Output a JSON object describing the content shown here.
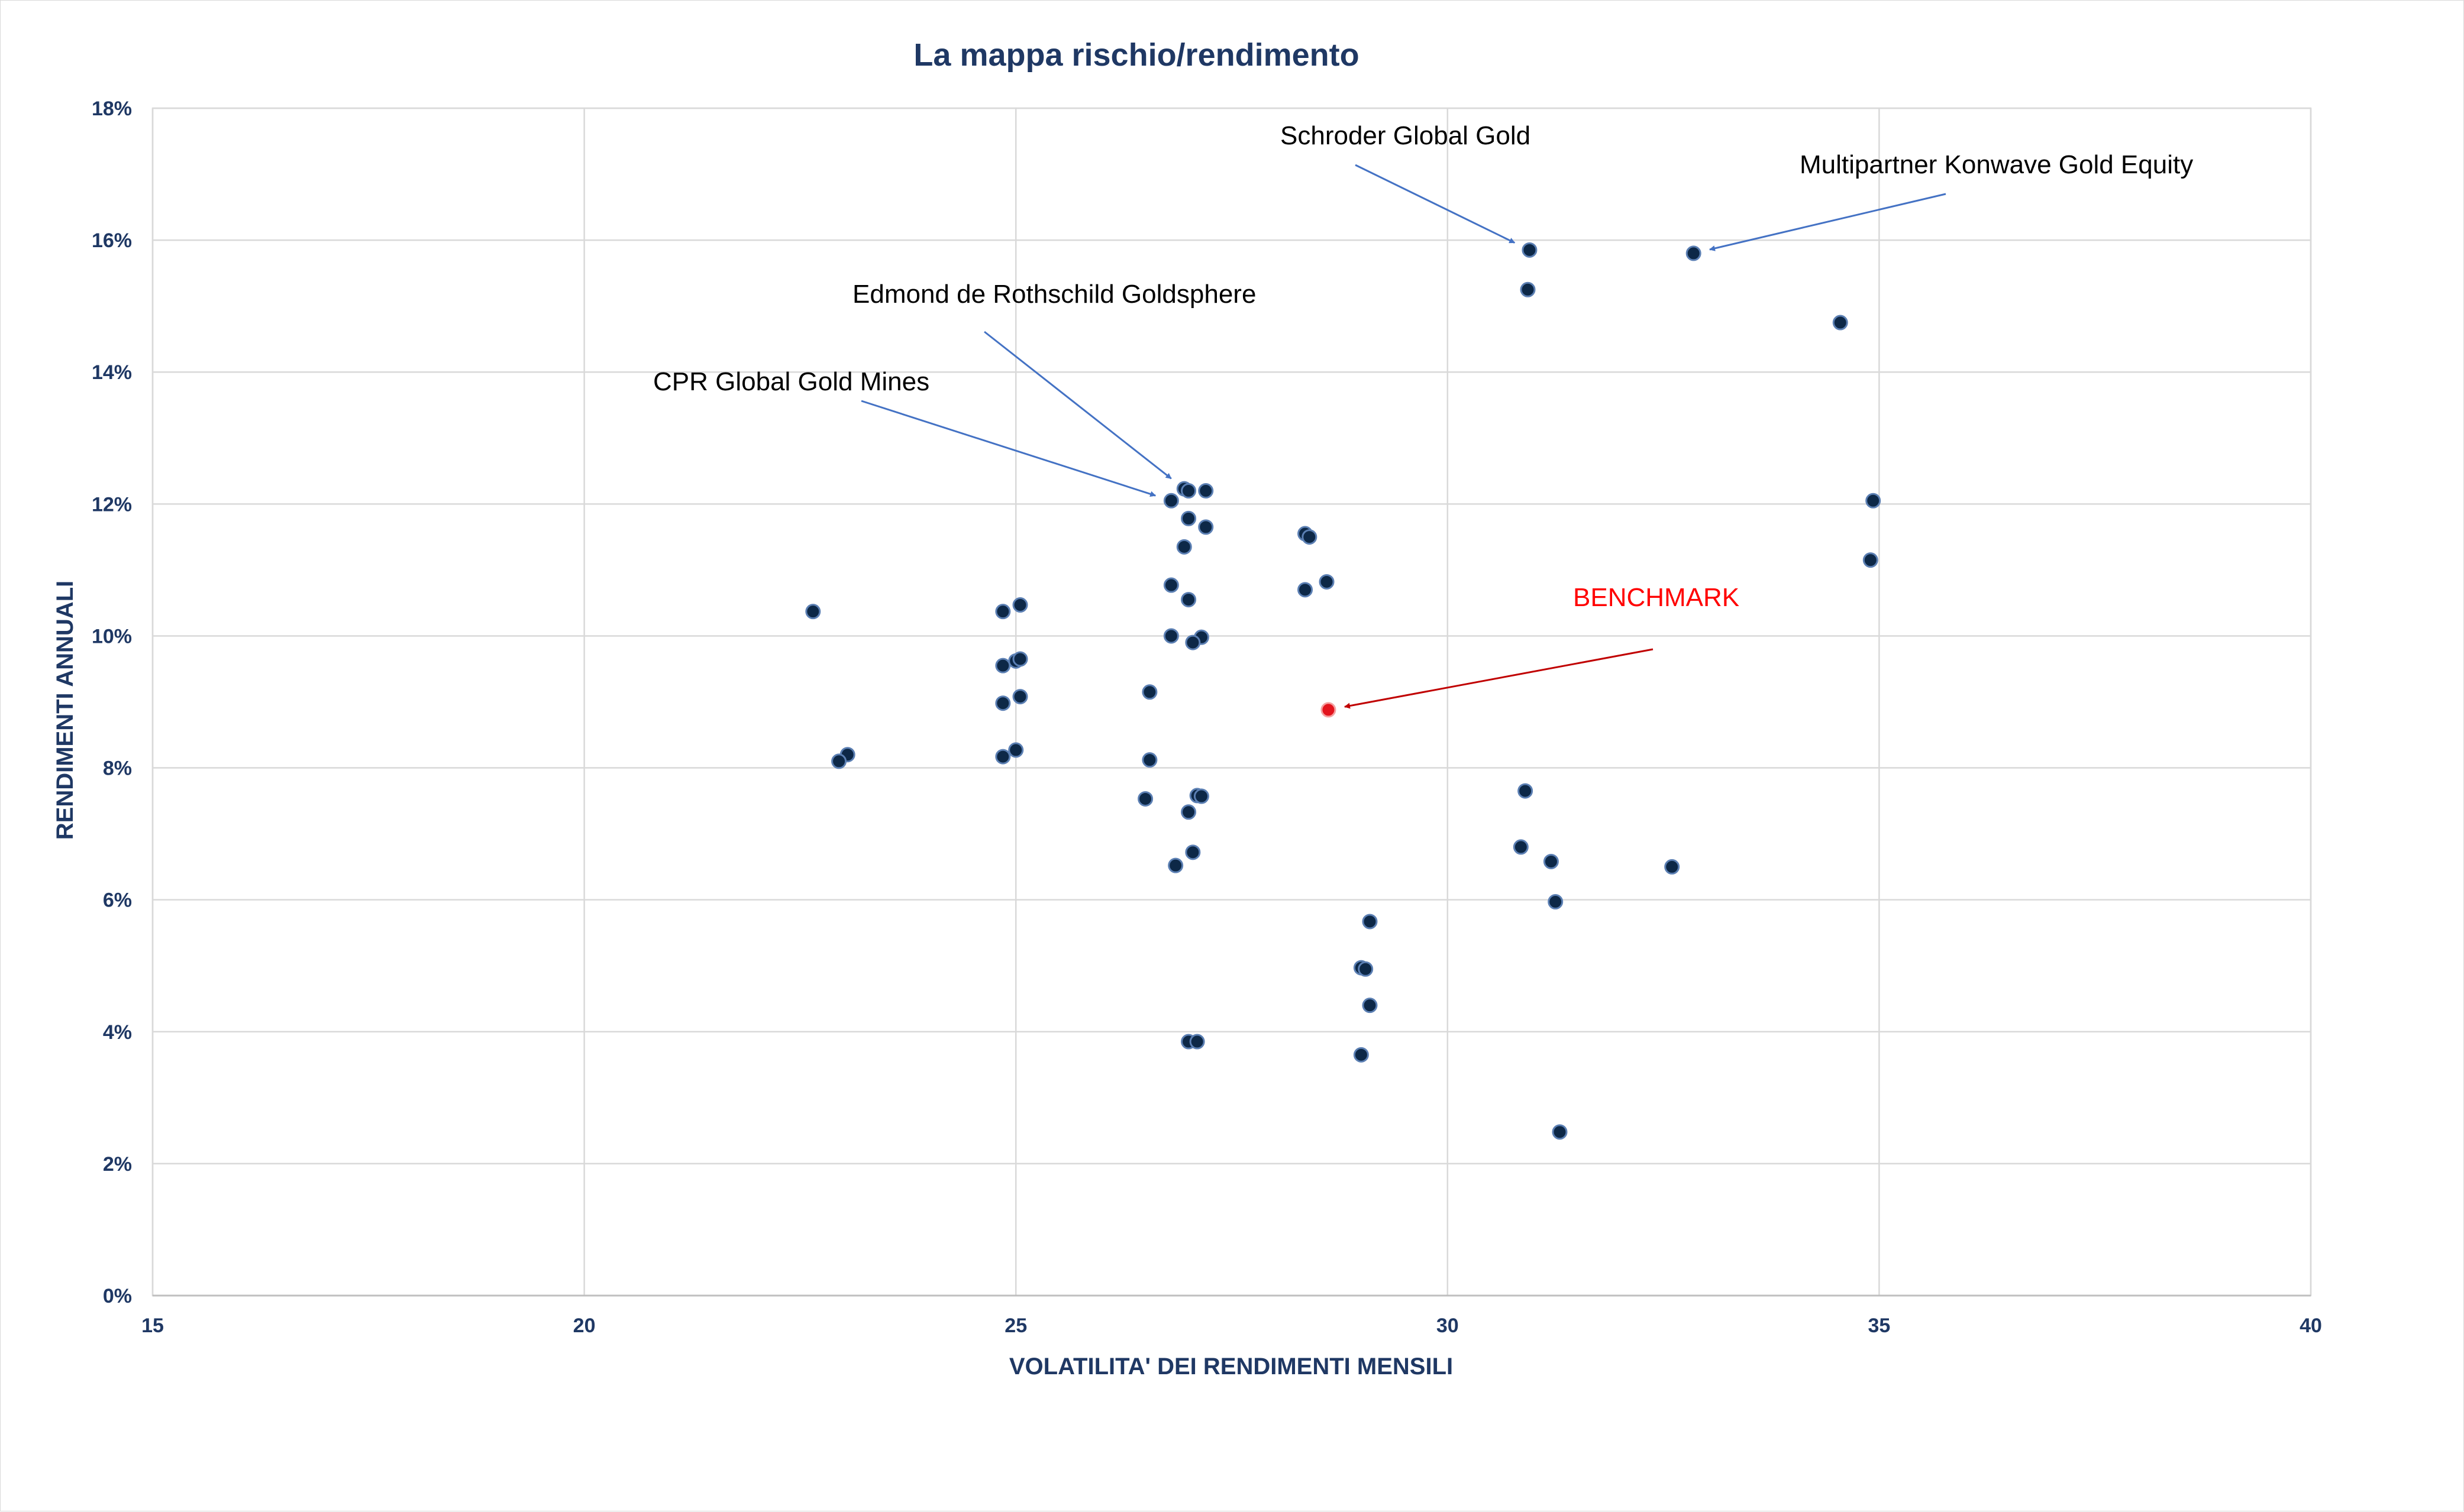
{
  "colors": {
    "point": "#0d2847",
    "point_stroke": "#5b7fb3",
    "benchmark": "#e3141d",
    "arrow_blue": "#4472c4",
    "arrow_red": "#c00000"
  },
  "chart_data": {
    "type": "scatter",
    "title": "La mappa rischio/rendimento",
    "xlabel": "VOLATILITA' DEI RENDIMENTI MENSILI",
    "ylabel": "RENDIMENTI ANNUALI",
    "xlim": [
      15,
      40
    ],
    "ylim": [
      0,
      18
    ],
    "x_ticks": [
      15,
      20,
      25,
      30,
      35,
      40
    ],
    "y_ticks": [
      0,
      2,
      4,
      6,
      8,
      10,
      12,
      14,
      16,
      18
    ],
    "x_tick_labels": [
      "15",
      "20",
      "25",
      "30",
      "35",
      "40"
    ],
    "y_tick_labels": [
      "0%",
      "2%",
      "4%",
      "6%",
      "8%",
      "10%",
      "12%",
      "14%",
      "16%",
      "18%"
    ],
    "grid": true,
    "legend": "none",
    "series": [
      {
        "points": [
          [
            30.95,
            15.85
          ],
          [
            32.85,
            15.8
          ],
          [
            30.93,
            15.25
          ],
          [
            34.55,
            14.75
          ],
          [
            34.93,
            12.05
          ],
          [
            34.9,
            11.15
          ],
          [
            26.95,
            12.23
          ],
          [
            27.0,
            12.2
          ],
          [
            27.2,
            12.2
          ],
          [
            26.8,
            12.05
          ],
          [
            27.0,
            11.78
          ],
          [
            27.2,
            11.65
          ],
          [
            26.95,
            11.35
          ],
          [
            28.35,
            11.55
          ],
          [
            28.4,
            11.5
          ],
          [
            28.6,
            10.82
          ],
          [
            28.35,
            10.7
          ],
          [
            26.8,
            10.77
          ],
          [
            27.0,
            10.55
          ],
          [
            26.8,
            10.0
          ],
          [
            27.15,
            9.98
          ],
          [
            27.05,
            9.9
          ],
          [
            22.65,
            10.37
          ],
          [
            24.85,
            10.37
          ],
          [
            25.05,
            10.47
          ],
          [
            25.0,
            9.62
          ],
          [
            25.05,
            9.65
          ],
          [
            24.85,
            9.55
          ],
          [
            25.05,
            9.08
          ],
          [
            24.85,
            8.98
          ],
          [
            26.55,
            9.15
          ],
          [
            23.05,
            8.2
          ],
          [
            22.95,
            8.1
          ],
          [
            24.85,
            8.17
          ],
          [
            25.0,
            8.27
          ],
          [
            26.55,
            8.12
          ],
          [
            26.5,
            7.53
          ],
          [
            27.1,
            7.58
          ],
          [
            27.15,
            7.57
          ],
          [
            27.0,
            7.33
          ],
          [
            27.05,
            6.72
          ],
          [
            26.85,
            6.52
          ],
          [
            30.9,
            7.65
          ],
          [
            30.85,
            6.8
          ],
          [
            31.2,
            6.58
          ],
          [
            32.6,
            6.5
          ],
          [
            31.25,
            5.97
          ],
          [
            29.1,
            5.67
          ],
          [
            29.0,
            4.97
          ],
          [
            29.05,
            4.95
          ],
          [
            29.1,
            4.4
          ],
          [
            27.0,
            3.85
          ],
          [
            27.1,
            3.85
          ],
          [
            29.0,
            3.65
          ],
          [
            31.3,
            2.48
          ]
        ]
      },
      {
        "points": [
          [
            28.62,
            8.88
          ]
        ]
      }
    ],
    "annotations": [
      {
        "text": "Schroder Global Gold",
        "target": [
          30.95,
          15.85
        ]
      },
      {
        "text": "Multipartner Konwave Gold Equity",
        "target": [
          32.85,
          15.8
        ]
      },
      {
        "text": "Edmond de Rothschild Goldsphere",
        "target": [
          26.95,
          12.23
        ]
      },
      {
        "text": "CPR Global Gold Mines",
        "target": [
          26.8,
          12.05
        ]
      },
      {
        "text": "BENCHMARK",
        "target": [
          28.62,
          8.88
        ]
      }
    ]
  }
}
